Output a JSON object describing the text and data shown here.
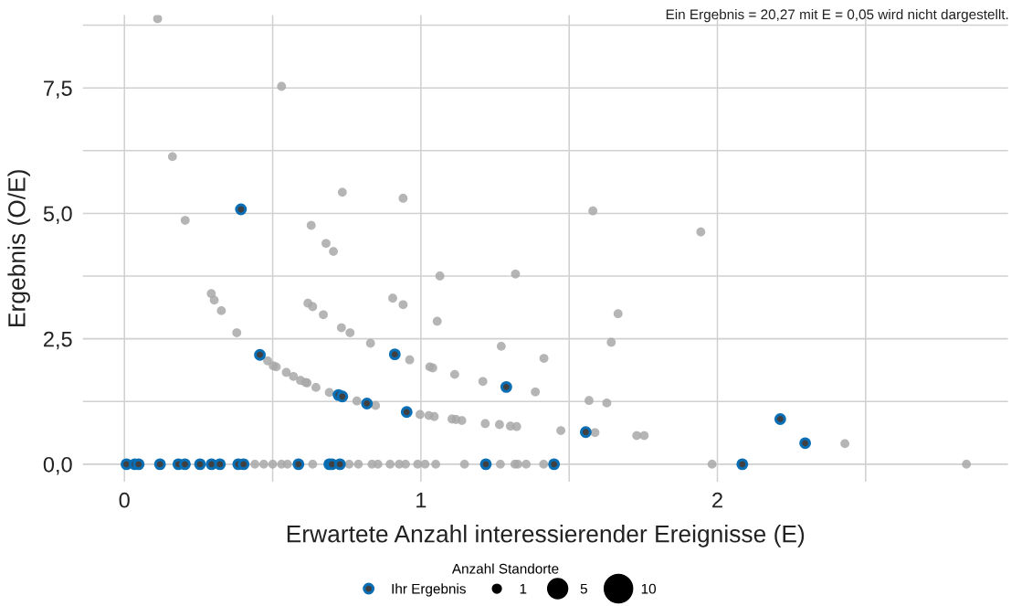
{
  "chart_data": {
    "type": "bubble",
    "xlabel": "Erwartete Anzahl interessierender Ereignisse (E)",
    "ylabel": "Ergebnis (O/E)",
    "annotations": [
      "Ein Ergebnis = 20,27 mit E = 0,05 wird nicht dargestellt."
    ],
    "xlim": [
      -0.14,
      2.98
    ],
    "ylim": [
      -0.35,
      8.95
    ],
    "xticks": [
      0,
      {
        "value": 0.5,
        "label": null
      },
      1,
      {
        "value": 1.5,
        "label": null
      },
      2,
      {
        "value": 2.5,
        "label": null
      }
    ],
    "yticks": [
      {
        "value": 0,
        "label": "0,0"
      },
      {
        "value": 1.25,
        "label": null
      },
      {
        "value": 2.5,
        "label": "2,5"
      },
      {
        "value": 3.75,
        "label": null
      },
      {
        "value": 5,
        "label": "5,0"
      },
      {
        "value": 6.25,
        "label": null
      },
      {
        "value": 7.5,
        "label": "7,5"
      },
      {
        "value": 8.75,
        "label": null
      }
    ],
    "grid": true,
    "legend": "bottom",
    "legend_title": "Anzahl Standorte",
    "size_legend": [
      1,
      5,
      10
    ],
    "series": [
      {
        "color": "#a8a8a8",
        "x": [
          0.112,
          0.53,
          0.162,
          0.205,
          0.735,
          0.94,
          0.63,
          0.68,
          0.705,
          1.064,
          1.944,
          1.58,
          1.319,
          1.055,
          1.665,
          1.271,
          1.642,
          1.415,
          1.114,
          1.209,
          1.386,
          1.567,
          1.627,
          1.105,
          1.118,
          1.138,
          1.217,
          1.265,
          1.302,
          1.323,
          1.472,
          1.587,
          1.728,
          1.753,
          2.43,
          0.293,
          0.303,
          0.327,
          0.379,
          0.483,
          0.502,
          0.512,
          0.546,
          0.57,
          0.594,
          0.611,
          0.616,
          0.646,
          0.619,
          0.635,
          0.671,
          0.732,
          0.761,
          0.83,
          0.905,
          0.94,
          0.962,
          1.03,
          1.04,
          0.691,
          0.784,
          0.847,
          0.997,
          1.027,
          1.045,
          0.44,
          0.47,
          0.5,
          0.53,
          0.55,
          0.635,
          0.758,
          0.789,
          0.835,
          0.855,
          0.896,
          0.927,
          0.948,
          0.989,
          1.014,
          1.05,
          1.147,
          1.268,
          1.317,
          1.327,
          1.355,
          1.414,
          1.982,
          2.84
        ],
        "values": [
          8.88,
          7.53,
          6.13,
          4.86,
          5.42,
          5.3,
          4.76,
          4.4,
          4.24,
          3.75,
          4.63,
          5.05,
          3.79,
          2.85,
          3.0,
          2.35,
          2.43,
          2.11,
          1.79,
          1.65,
          1.44,
          1.27,
          1.22,
          0.9,
          0.89,
          0.87,
          0.81,
          0.79,
          0.76,
          0.75,
          0.67,
          0.63,
          0.57,
          0.57,
          0.41,
          3.4,
          3.27,
          3.06,
          2.62,
          2.06,
          1.96,
          1.94,
          1.83,
          1.75,
          1.67,
          1.63,
          1.62,
          1.53,
          3.21,
          3.14,
          2.98,
          2.72,
          2.62,
          2.41,
          3.31,
          3.18,
          2.08,
          1.94,
          1.92,
          1.43,
          1.26,
          1.17,
          0.99,
          0.97,
          0.95,
          0,
          0,
          0,
          0,
          0,
          0,
          0,
          0,
          0,
          0,
          0,
          0,
          0,
          0,
          0,
          0,
          0,
          0,
          0,
          0,
          0,
          0,
          0,
          0
        ],
        "sizes": [
          1,
          1,
          1,
          1,
          1,
          1,
          1,
          1,
          1,
          1,
          1,
          1,
          1,
          1,
          1,
          1,
          1,
          1,
          1,
          1,
          1,
          1,
          1,
          1,
          1,
          1,
          1,
          1,
          1,
          1,
          1,
          1,
          1,
          1,
          1,
          1,
          1,
          1,
          1,
          1,
          1,
          1,
          1,
          1,
          1,
          1,
          1,
          1,
          1,
          1,
          1,
          1,
          1,
          1,
          1,
          1,
          1,
          1,
          1,
          1,
          1,
          1,
          1,
          1,
          1,
          1,
          1,
          1,
          1,
          1,
          1,
          1,
          1,
          1,
          1,
          1,
          1,
          1,
          1,
          1,
          1,
          1,
          1,
          1,
          1,
          1,
          1,
          1,
          1
        ]
      },
      {
        "name": "Ihr Ergebnis",
        "color": "#0a6eb4",
        "x": [
          0.393,
          1.288,
          1.556,
          2.212,
          2.296,
          0.457,
          0.912,
          0.722,
          0.735,
          0.818,
          0.952,
          0.007,
          0.035,
          0.048,
          0.12,
          0.182,
          0.204,
          0.255,
          0.294,
          0.322,
          0.384,
          0.402,
          0.587,
          0.691,
          0.7,
          0.727,
          1.219,
          1.449,
          2.084
        ],
        "values": [
          5.08,
          1.54,
          0.64,
          0.9,
          0.42,
          2.18,
          2.19,
          1.38,
          1.35,
          1.21,
          1.04,
          0,
          0,
          0,
          0,
          0,
          0,
          0,
          0,
          0,
          0,
          0,
          0,
          0,
          0,
          0,
          0,
          0,
          0
        ],
        "sizes": [
          1,
          1,
          1,
          1,
          1,
          1,
          1,
          1,
          1,
          1,
          1,
          1,
          1,
          1,
          1,
          1,
          1,
          1,
          1,
          1,
          1,
          1,
          1,
          1,
          1,
          1,
          1,
          1,
          1
        ]
      }
    ]
  }
}
